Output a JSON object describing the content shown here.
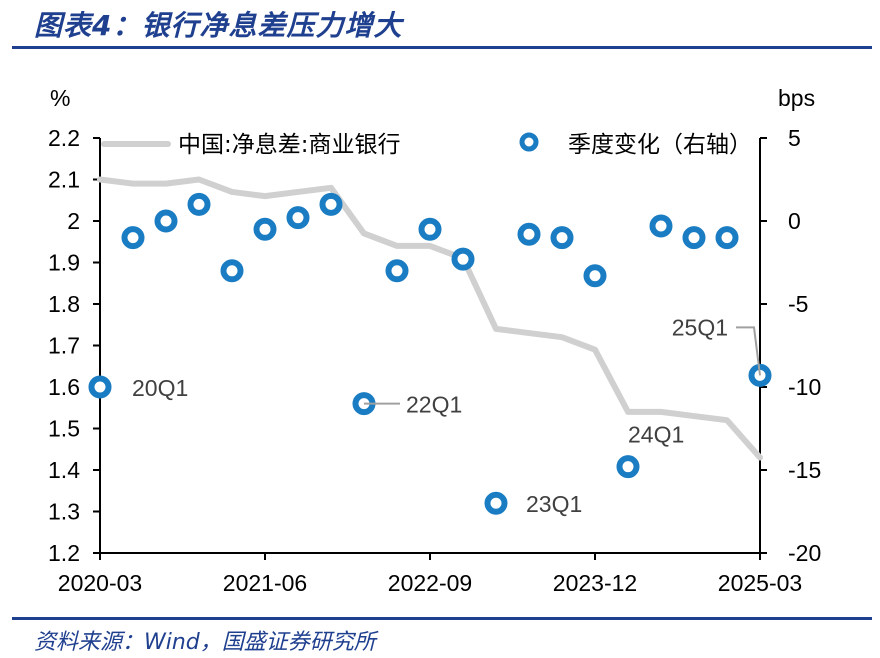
{
  "header": {
    "title": "图表4：银行净息差压力增大"
  },
  "footer": {
    "source": "资料来源：Wind，国盛证券研究所"
  },
  "colors": {
    "title": "#1f3f8f",
    "line": "#d0d0d0",
    "dot": "#1a7cc2",
    "axis": "#000000",
    "annotation": "#404040"
  },
  "chart_data": {
    "type": "line",
    "title": "银行净息差压力增大",
    "x_categories": [
      "2020-03",
      "2020-06",
      "2020-09",
      "2020-12",
      "2021-03",
      "2021-06",
      "2021-09",
      "2021-12",
      "2022-03",
      "2022-06",
      "2022-09",
      "2022-12",
      "2023-03",
      "2023-06",
      "2023-09",
      "2023-12",
      "2024-03",
      "2024-06",
      "2024-09",
      "2024-12",
      "2025-03"
    ],
    "x_tick_labels": [
      "2020-03",
      "2021-06",
      "2022-09",
      "2023-12",
      "2025-03"
    ],
    "left_axis": {
      "unit_label": "%",
      "range": [
        1.2,
        2.2
      ],
      "ticks": [
        2.2,
        2.1,
        2,
        1.9,
        1.8,
        1.7,
        1.6,
        1.5,
        1.4,
        1.3,
        1.2
      ]
    },
    "right_axis": {
      "unit_label": "bps",
      "range": [
        -20,
        5
      ],
      "ticks": [
        5,
        0,
        -5,
        -10,
        -15,
        -20
      ]
    },
    "series": [
      {
        "name": "中国:净息差:商业银行",
        "axis": "left",
        "style": "line",
        "values": [
          2.1,
          2.09,
          2.09,
          2.1,
          2.07,
          2.06,
          2.07,
          2.08,
          1.97,
          1.94,
          1.94,
          1.91,
          1.74,
          1.73,
          1.72,
          1.69,
          1.54,
          1.54,
          1.53,
          1.52,
          1.43
        ]
      },
      {
        "name": "季度变化（右轴）",
        "axis": "right",
        "style": "scatter",
        "values": [
          -10,
          -1,
          0,
          1,
          -3,
          -0.5,
          0.2,
          1,
          -11,
          -3,
          -0.5,
          -2.3,
          -17,
          -0.8,
          -1,
          -3.3,
          -14.8,
          -0.3,
          -1,
          -1,
          -9.3
        ]
      }
    ],
    "legend": [
      "中国:净息差:商业银行",
      "季度变化（右轴）"
    ],
    "legend_position": "top",
    "annotations": [
      {
        "label": "20Q1",
        "x": "2020-03"
      },
      {
        "label": "22Q1",
        "x": "2022-03"
      },
      {
        "label": "23Q1",
        "x": "2023-03"
      },
      {
        "label": "24Q1",
        "x": "2024-03"
      },
      {
        "label": "25Q1",
        "x": "2025-03"
      }
    ]
  }
}
